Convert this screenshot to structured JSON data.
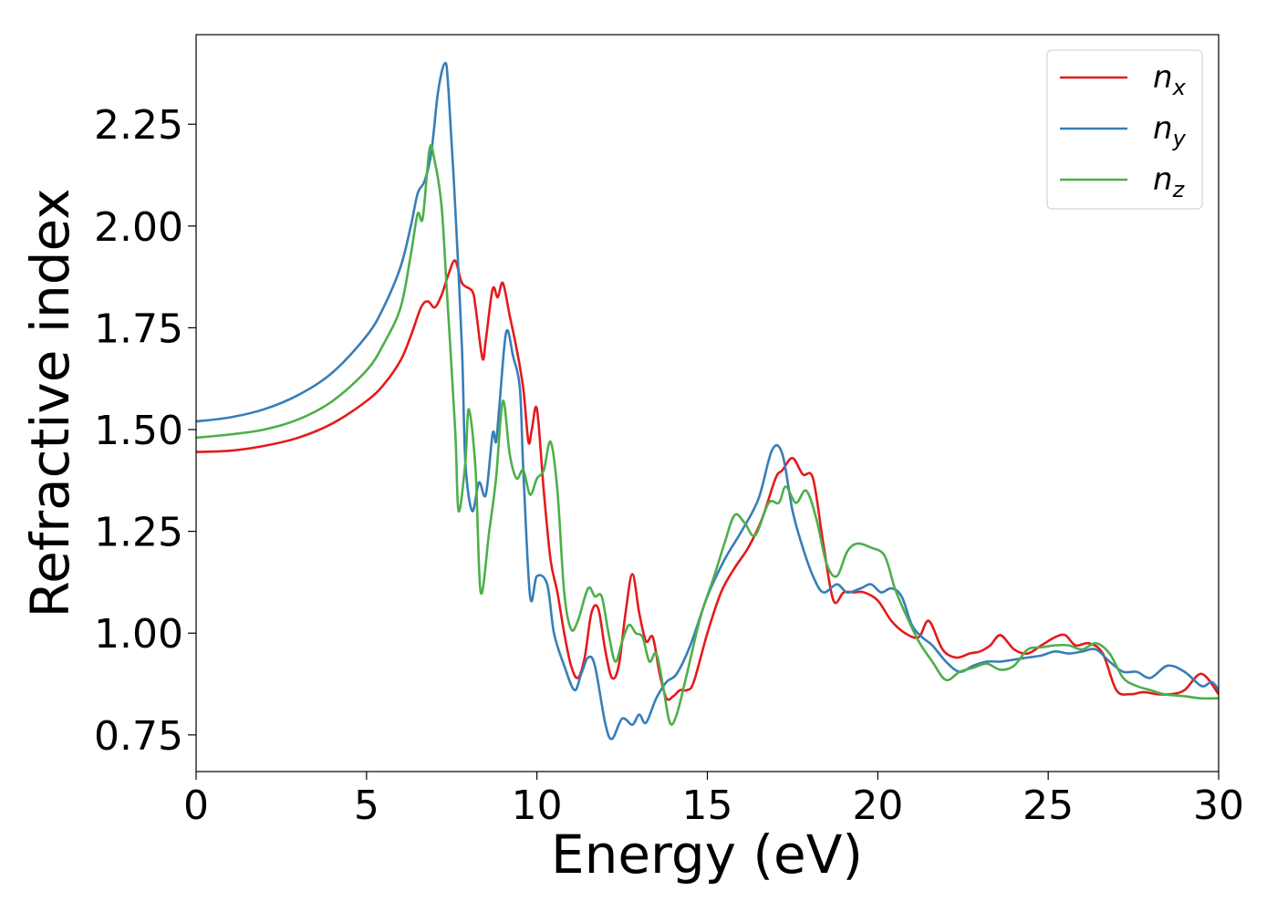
{
  "chart_data": {
    "type": "line",
    "xlabel": "Energy (eV)",
    "ylabel": "Refractive index",
    "xlim": [
      0,
      30
    ],
    "ylim": [
      0.66,
      2.47
    ],
    "xticks": [
      0,
      5,
      10,
      15,
      20,
      25,
      30
    ],
    "xtick_labels": [
      "0",
      "5",
      "10",
      "15",
      "20",
      "25",
      "30"
    ],
    "yticks": [
      0.75,
      1.0,
      1.25,
      1.5,
      1.75,
      2.0,
      2.25
    ],
    "ytick_labels": [
      "0.75",
      "1.00",
      "1.25",
      "1.50",
      "1.75",
      "2.00",
      "2.25"
    ],
    "grid": false,
    "legend": {
      "position": "top-right"
    },
    "series": [
      {
        "name": "n",
        "subscript": "x",
        "color": "#e41a1c",
        "points": [
          [
            0,
            1.445
          ],
          [
            1,
            1.448
          ],
          [
            2,
            1.46
          ],
          [
            3,
            1.48
          ],
          [
            4,
            1.515
          ],
          [
            5,
            1.57
          ],
          [
            5.5,
            1.61
          ],
          [
            6,
            1.67
          ],
          [
            6.3,
            1.73
          ],
          [
            6.6,
            1.8
          ],
          [
            6.8,
            1.815
          ],
          [
            7.0,
            1.8
          ],
          [
            7.2,
            1.83
          ],
          [
            7.4,
            1.88
          ],
          [
            7.6,
            1.915
          ],
          [
            7.8,
            1.86
          ],
          [
            8.1,
            1.84
          ],
          [
            8.2,
            1.8
          ],
          [
            8.4,
            1.675
          ],
          [
            8.5,
            1.72
          ],
          [
            8.7,
            1.845
          ],
          [
            8.85,
            1.825
          ],
          [
            9.0,
            1.86
          ],
          [
            9.2,
            1.78
          ],
          [
            9.4,
            1.7
          ],
          [
            9.6,
            1.6
          ],
          [
            9.75,
            1.47
          ],
          [
            9.85,
            1.5
          ],
          [
            10.0,
            1.55
          ],
          [
            10.2,
            1.35
          ],
          [
            10.4,
            1.18
          ],
          [
            10.6,
            1.1
          ],
          [
            10.8,
            1.0
          ],
          [
            11.0,
            0.92
          ],
          [
            11.2,
            0.89
          ],
          [
            11.4,
            0.94
          ],
          [
            11.6,
            1.05
          ],
          [
            11.8,
            1.06
          ],
          [
            12.0,
            0.96
          ],
          [
            12.2,
            0.89
          ],
          [
            12.4,
            0.92
          ],
          [
            12.6,
            1.05
          ],
          [
            12.8,
            1.145
          ],
          [
            13.0,
            1.05
          ],
          [
            13.2,
            0.98
          ],
          [
            13.4,
            0.99
          ],
          [
            13.6,
            0.9
          ],
          [
            13.8,
            0.84
          ],
          [
            14.0,
            0.845
          ],
          [
            14.2,
            0.86
          ],
          [
            14.4,
            0.86
          ],
          [
            14.6,
            0.88
          ],
          [
            15.0,
            1.0
          ],
          [
            15.4,
            1.1
          ],
          [
            15.8,
            1.16
          ],
          [
            16.2,
            1.21
          ],
          [
            16.6,
            1.28
          ],
          [
            17.0,
            1.38
          ],
          [
            17.2,
            1.4
          ],
          [
            17.5,
            1.43
          ],
          [
            17.8,
            1.39
          ],
          [
            18.1,
            1.38
          ],
          [
            18.4,
            1.22
          ],
          [
            18.7,
            1.08
          ],
          [
            19.0,
            1.1
          ],
          [
            19.3,
            1.1
          ],
          [
            19.6,
            1.1
          ],
          [
            20.0,
            1.08
          ],
          [
            20.4,
            1.03
          ],
          [
            20.8,
            1.0
          ],
          [
            21.2,
            0.99
          ],
          [
            21.5,
            1.03
          ],
          [
            21.9,
            0.96
          ],
          [
            22.3,
            0.94
          ],
          [
            22.7,
            0.95
          ],
          [
            23.0,
            0.955
          ],
          [
            23.3,
            0.97
          ],
          [
            23.6,
            0.995
          ],
          [
            24.0,
            0.96
          ],
          [
            24.4,
            0.95
          ],
          [
            24.8,
            0.97
          ],
          [
            25.2,
            0.99
          ],
          [
            25.5,
            0.995
          ],
          [
            25.8,
            0.97
          ],
          [
            26.2,
            0.975
          ],
          [
            26.6,
            0.95
          ],
          [
            27.0,
            0.86
          ],
          [
            27.4,
            0.85
          ],
          [
            27.8,
            0.855
          ],
          [
            28.2,
            0.85
          ],
          [
            28.6,
            0.85
          ],
          [
            29.0,
            0.86
          ],
          [
            29.5,
            0.9
          ],
          [
            30.0,
            0.85
          ]
        ]
      },
      {
        "name": "n",
        "subscript": "y",
        "color": "#377eb8",
        "points": [
          [
            0,
            1.52
          ],
          [
            1,
            1.53
          ],
          [
            2,
            1.55
          ],
          [
            3,
            1.585
          ],
          [
            4,
            1.64
          ],
          [
            5,
            1.73
          ],
          [
            5.5,
            1.8
          ],
          [
            6,
            1.9
          ],
          [
            6.3,
            2.0
          ],
          [
            6.5,
            2.08
          ],
          [
            6.7,
            2.11
          ],
          [
            6.9,
            2.18
          ],
          [
            7.1,
            2.33
          ],
          [
            7.3,
            2.4
          ],
          [
            7.4,
            2.34
          ],
          [
            7.6,
            2.05
          ],
          [
            7.8,
            1.7
          ],
          [
            7.9,
            1.42
          ],
          [
            8.1,
            1.3
          ],
          [
            8.3,
            1.37
          ],
          [
            8.5,
            1.34
          ],
          [
            8.7,
            1.49
          ],
          [
            8.8,
            1.47
          ],
          [
            8.9,
            1.56
          ],
          [
            9.1,
            1.74
          ],
          [
            9.3,
            1.68
          ],
          [
            9.5,
            1.6
          ],
          [
            9.6,
            1.4
          ],
          [
            9.8,
            1.09
          ],
          [
            10.0,
            1.14
          ],
          [
            10.3,
            1.12
          ],
          [
            10.5,
            1.0
          ],
          [
            10.8,
            0.92
          ],
          [
            11.1,
            0.86
          ],
          [
            11.3,
            0.9
          ],
          [
            11.5,
            0.94
          ],
          [
            11.7,
            0.92
          ],
          [
            12.0,
            0.78
          ],
          [
            12.2,
            0.74
          ],
          [
            12.5,
            0.79
          ],
          [
            12.8,
            0.775
          ],
          [
            13.0,
            0.8
          ],
          [
            13.2,
            0.78
          ],
          [
            13.5,
            0.84
          ],
          [
            13.8,
            0.88
          ],
          [
            14.1,
            0.9
          ],
          [
            14.5,
            0.97
          ],
          [
            15.0,
            1.09
          ],
          [
            15.5,
            1.18
          ],
          [
            16.0,
            1.25
          ],
          [
            16.5,
            1.33
          ],
          [
            16.9,
            1.45
          ],
          [
            17.2,
            1.44
          ],
          [
            17.5,
            1.3
          ],
          [
            17.8,
            1.21
          ],
          [
            18.1,
            1.14
          ],
          [
            18.4,
            1.1
          ],
          [
            18.8,
            1.12
          ],
          [
            19.1,
            1.1
          ],
          [
            19.5,
            1.11
          ],
          [
            19.8,
            1.12
          ],
          [
            20.1,
            1.1
          ],
          [
            20.4,
            1.11
          ],
          [
            20.7,
            1.09
          ],
          [
            21.0,
            1.02
          ],
          [
            21.3,
            0.99
          ],
          [
            21.6,
            0.97
          ],
          [
            22.0,
            0.93
          ],
          [
            22.4,
            0.905
          ],
          [
            22.8,
            0.92
          ],
          [
            23.2,
            0.93
          ],
          [
            23.6,
            0.93
          ],
          [
            24.0,
            0.935
          ],
          [
            24.4,
            0.94
          ],
          [
            24.8,
            0.945
          ],
          [
            25.2,
            0.955
          ],
          [
            25.6,
            0.95
          ],
          [
            26.0,
            0.955
          ],
          [
            26.4,
            0.96
          ],
          [
            26.8,
            0.93
          ],
          [
            27.2,
            0.905
          ],
          [
            27.6,
            0.905
          ],
          [
            28.0,
            0.89
          ],
          [
            28.5,
            0.92
          ],
          [
            29.0,
            0.905
          ],
          [
            29.5,
            0.87
          ],
          [
            29.8,
            0.88
          ],
          [
            30.0,
            0.86
          ]
        ]
      },
      {
        "name": "n",
        "subscript": "z",
        "color": "#4daf4a",
        "points": [
          [
            0,
            1.48
          ],
          [
            1,
            1.488
          ],
          [
            2,
            1.5
          ],
          [
            3,
            1.525
          ],
          [
            4,
            1.57
          ],
          [
            5,
            1.645
          ],
          [
            5.5,
            1.71
          ],
          [
            6,
            1.8
          ],
          [
            6.3,
            1.93
          ],
          [
            6.5,
            2.03
          ],
          [
            6.65,
            2.02
          ],
          [
            6.85,
            2.19
          ],
          [
            7.0,
            2.16
          ],
          [
            7.2,
            2.05
          ],
          [
            7.35,
            1.85
          ],
          [
            7.6,
            1.5
          ],
          [
            7.7,
            1.3
          ],
          [
            7.9,
            1.42
          ],
          [
            8.0,
            1.55
          ],
          [
            8.2,
            1.4
          ],
          [
            8.35,
            1.1
          ],
          [
            8.6,
            1.25
          ],
          [
            8.8,
            1.38
          ],
          [
            9.0,
            1.57
          ],
          [
            9.2,
            1.44
          ],
          [
            9.4,
            1.38
          ],
          [
            9.6,
            1.4
          ],
          [
            9.8,
            1.34
          ],
          [
            10.0,
            1.38
          ],
          [
            10.2,
            1.4
          ],
          [
            10.4,
            1.47
          ],
          [
            10.6,
            1.35
          ],
          [
            10.8,
            1.1
          ],
          [
            11.0,
            1.01
          ],
          [
            11.2,
            1.03
          ],
          [
            11.5,
            1.11
          ],
          [
            11.7,
            1.09
          ],
          [
            11.9,
            1.09
          ],
          [
            12.1,
            1.0
          ],
          [
            12.3,
            0.93
          ],
          [
            12.5,
            0.98
          ],
          [
            12.7,
            1.02
          ],
          [
            12.9,
            1.0
          ],
          [
            13.1,
            0.99
          ],
          [
            13.3,
            0.93
          ],
          [
            13.5,
            0.95
          ],
          [
            13.7,
            0.87
          ],
          [
            13.9,
            0.78
          ],
          [
            14.1,
            0.8
          ],
          [
            14.4,
            0.9
          ],
          [
            14.8,
            1.04
          ],
          [
            15.2,
            1.14
          ],
          [
            15.5,
            1.22
          ],
          [
            15.8,
            1.29
          ],
          [
            16.1,
            1.27
          ],
          [
            16.4,
            1.24
          ],
          [
            16.8,
            1.32
          ],
          [
            17.1,
            1.32
          ],
          [
            17.3,
            1.36
          ],
          [
            17.6,
            1.32
          ],
          [
            17.9,
            1.35
          ],
          [
            18.2,
            1.28
          ],
          [
            18.5,
            1.17
          ],
          [
            18.8,
            1.14
          ],
          [
            19.1,
            1.2
          ],
          [
            19.4,
            1.22
          ],
          [
            19.8,
            1.21
          ],
          [
            20.2,
            1.19
          ],
          [
            20.5,
            1.11
          ],
          [
            20.8,
            1.05
          ],
          [
            21.2,
            0.98
          ],
          [
            21.6,
            0.93
          ],
          [
            22.0,
            0.885
          ],
          [
            22.4,
            0.905
          ],
          [
            22.8,
            0.915
          ],
          [
            23.2,
            0.925
          ],
          [
            23.6,
            0.91
          ],
          [
            24.0,
            0.92
          ],
          [
            24.4,
            0.96
          ],
          [
            24.8,
            0.965
          ],
          [
            25.2,
            0.97
          ],
          [
            25.6,
            0.97
          ],
          [
            26.0,
            0.96
          ],
          [
            26.4,
            0.975
          ],
          [
            26.8,
            0.95
          ],
          [
            27.2,
            0.89
          ],
          [
            27.6,
            0.87
          ],
          [
            28.0,
            0.86
          ],
          [
            28.4,
            0.85
          ],
          [
            29.0,
            0.845
          ],
          [
            29.5,
            0.84
          ],
          [
            30.0,
            0.84
          ]
        ]
      }
    ]
  }
}
